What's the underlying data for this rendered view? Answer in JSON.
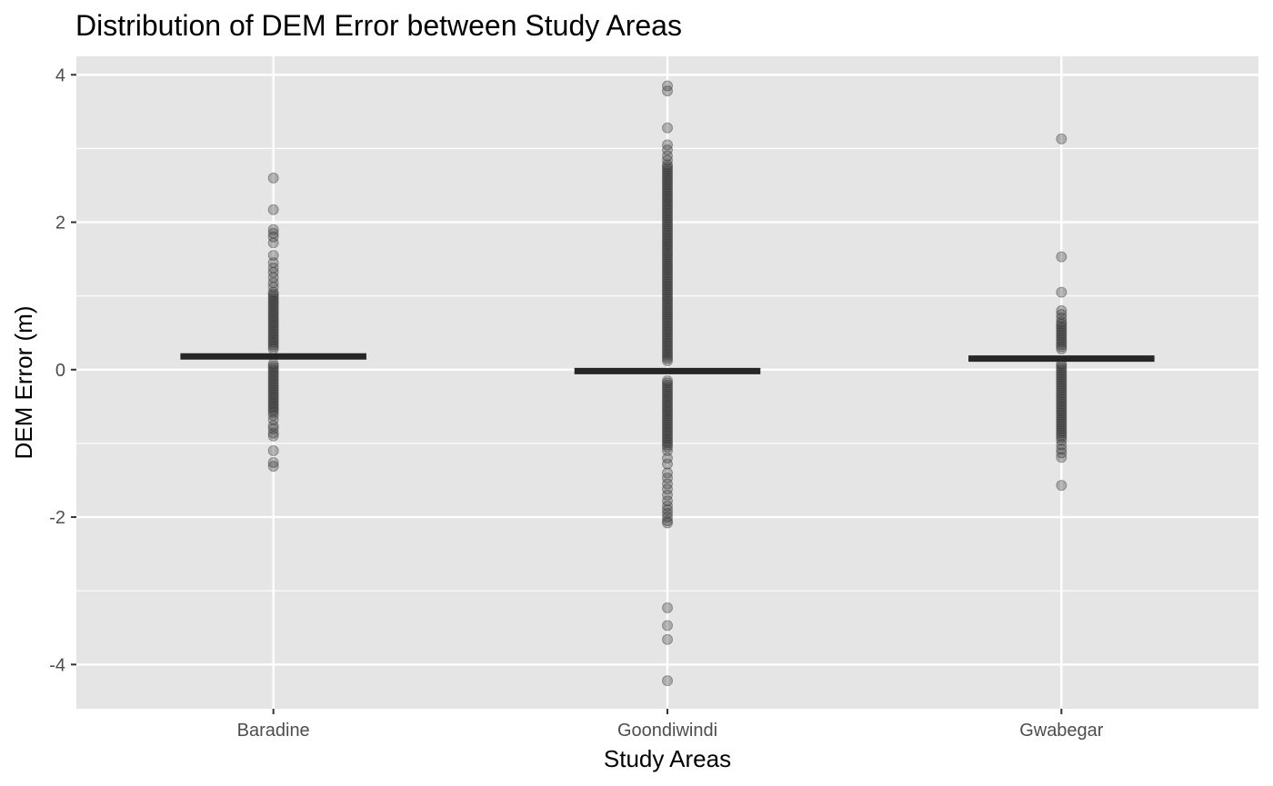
{
  "chart_data": {
    "type": "scatter",
    "subtype": "jittered strip plot with median bars",
    "title": "Distribution of DEM Error between Study Areas",
    "xlabel": "Study Areas",
    "ylabel": "DEM Error (m)",
    "categories": [
      "Baradine",
      "Goondiwindi",
      "Gwabegar"
    ],
    "ylim": [
      -4.6,
      4.25
    ],
    "y_ticks": [
      -4,
      -2,
      0,
      2,
      4
    ],
    "y_tick_labels": [
      "-4",
      "-2",
      "0",
      "2",
      "4"
    ],
    "grid": true,
    "legend": "none",
    "colors": {
      "panel_background": "#e5e5e5",
      "grid": "#ffffff",
      "points": "#333333",
      "median_bar": "#262626"
    },
    "medians": [
      0.18,
      -0.02,
      0.15
    ],
    "series": [
      {
        "category": "Baradine",
        "dense_ranges": [
          [
            0.28,
            1.05
          ],
          [
            -0.58,
            0.08
          ]
        ],
        "values": [
          2.6,
          2.17,
          1.9,
          1.85,
          1.8,
          1.72,
          1.55,
          1.45,
          1.38,
          1.32,
          1.25,
          1.18,
          1.12,
          -0.62,
          -0.68,
          -0.76,
          -0.8,
          -0.86,
          -0.9,
          -1.1,
          -1.26,
          -1.31
        ]
      },
      {
        "category": "Goondiwindi",
        "dense_ranges": [
          [
            0.12,
            2.78
          ],
          [
            -1.05,
            -0.15
          ]
        ],
        "values": [
          3.85,
          3.78,
          3.28,
          3.05,
          2.98,
          2.9,
          2.84,
          -1.1,
          -1.2,
          -1.28,
          -1.4,
          -1.47,
          -1.55,
          -1.62,
          -1.7,
          -1.78,
          -1.85,
          -1.9,
          -1.95,
          -2.0,
          -2.05,
          -2.08,
          -3.23,
          -3.47,
          -3.66,
          -4.22
        ]
      },
      {
        "category": "Gwabegar",
        "dense_ranges": [
          [
            0.28,
            0.65
          ],
          [
            -0.92,
            0.08
          ]
        ],
        "values": [
          3.13,
          1.53,
          1.05,
          0.8,
          0.75,
          0.7,
          -0.96,
          -1.02,
          -1.08,
          -1.13,
          -1.19,
          -1.57
        ]
      }
    ]
  }
}
